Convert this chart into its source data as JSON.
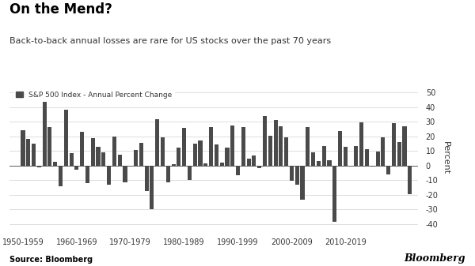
{
  "title": "On the Mend?",
  "subtitle": "Back-to-back annual losses are rare for US stocks over the past 70 years",
  "legend_label": "S&P 500 Index - Annual Percent Change",
  "ylabel": "Percent",
  "source": "Source: Bloomberg",
  "watermark": "Bloomberg",
  "bar_color": "#4a4a4a",
  "background_color": "#ffffff",
  "ylim": [
    -45,
    55
  ],
  "yticks": [
    -40,
    -30,
    -20,
    -10,
    0,
    10,
    20,
    30,
    40,
    50
  ],
  "years": [
    1950,
    1951,
    1952,
    1953,
    1954,
    1955,
    1956,
    1957,
    1958,
    1959,
    1960,
    1961,
    1962,
    1963,
    1964,
    1965,
    1966,
    1967,
    1968,
    1969,
    1970,
    1971,
    1972,
    1973,
    1974,
    1975,
    1976,
    1977,
    1978,
    1979,
    1980,
    1981,
    1982,
    1983,
    1984,
    1985,
    1986,
    1987,
    1988,
    1989,
    1990,
    1991,
    1992,
    1993,
    1994,
    1995,
    1996,
    1997,
    1998,
    1999,
    2000,
    2001,
    2002,
    2003,
    2004,
    2005,
    2006,
    2007,
    2008,
    2009,
    2010,
    2011,
    2012,
    2013,
    2014,
    2015,
    2016,
    2017,
    2018,
    2019,
    2020,
    2021,
    2022
  ],
  "values": [
    24.0,
    18.4,
    15.2,
    -1.0,
    45.0,
    26.4,
    2.6,
    -14.3,
    38.1,
    8.5,
    -3.0,
    23.1,
    -11.8,
    18.9,
    13.0,
    9.1,
    -13.1,
    20.1,
    7.7,
    -11.4,
    0.1,
    10.8,
    15.6,
    -17.4,
    -29.7,
    31.5,
    19.1,
    -11.5,
    1.1,
    12.3,
    25.8,
    -9.7,
    14.8,
    17.3,
    1.4,
    26.3,
    14.6,
    2.0,
    12.4,
    27.3,
    -6.6,
    26.3,
    4.5,
    7.1,
    -1.5,
    34.1,
    20.3,
    31.0,
    26.7,
    19.5,
    -10.1,
    -13.0,
    -23.4,
    26.4,
    9.0,
    3.0,
    13.6,
    3.5,
    -38.5,
    23.5,
    12.8,
    0.0,
    13.4,
    29.6,
    11.4,
    -0.7,
    9.5,
    19.4,
    -6.2,
    28.9,
    16.3,
    26.9,
    -19.4
  ],
  "decade_ticks": [
    1950,
    1960,
    1970,
    1980,
    1990,
    2000,
    2010
  ],
  "decade_labels": [
    "1950-1959",
    "1960-1969",
    "1970-1979",
    "1980-1989",
    "1990-1999",
    "2000-2009",
    "2010-2019"
  ],
  "title_fontsize": 12,
  "subtitle_fontsize": 8,
  "tick_fontsize": 7,
  "legend_fontsize": 6.5,
  "source_fontsize": 7,
  "watermark_fontsize": 9
}
